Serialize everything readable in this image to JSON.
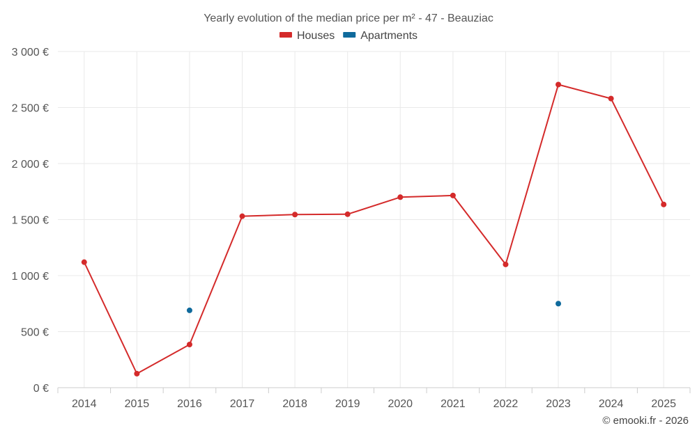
{
  "chart_data": {
    "type": "line",
    "title": "Yearly evolution of the median price per m² - 47 - Beauziac",
    "categories": [
      "2014",
      "2015",
      "2016",
      "2017",
      "2018",
      "2019",
      "2020",
      "2021",
      "2022",
      "2023",
      "2024",
      "2025"
    ],
    "series": [
      {
        "name": "Houses",
        "color": "#d42a2a",
        "values": [
          1120,
          125,
          385,
          1530,
          1545,
          1548,
          1700,
          1715,
          1100,
          2705,
          2580,
          1635
        ]
      },
      {
        "name": "Apartments",
        "color": "#0f6a9c",
        "values": [
          null,
          null,
          690,
          null,
          null,
          null,
          null,
          null,
          null,
          750,
          null,
          null
        ]
      }
    ],
    "yticks": [
      0,
      500,
      1000,
      1500,
      2000,
      2500,
      3000
    ],
    "ytick_labels": [
      "0 €",
      "500 €",
      "1 000 €",
      "1 500 €",
      "2 000 €",
      "2 500 €",
      "3 000 €"
    ],
    "ylim": [
      0,
      3000
    ],
    "grid": true,
    "legend_position": "top-center"
  },
  "credit": "© emooki.fr - 2026"
}
